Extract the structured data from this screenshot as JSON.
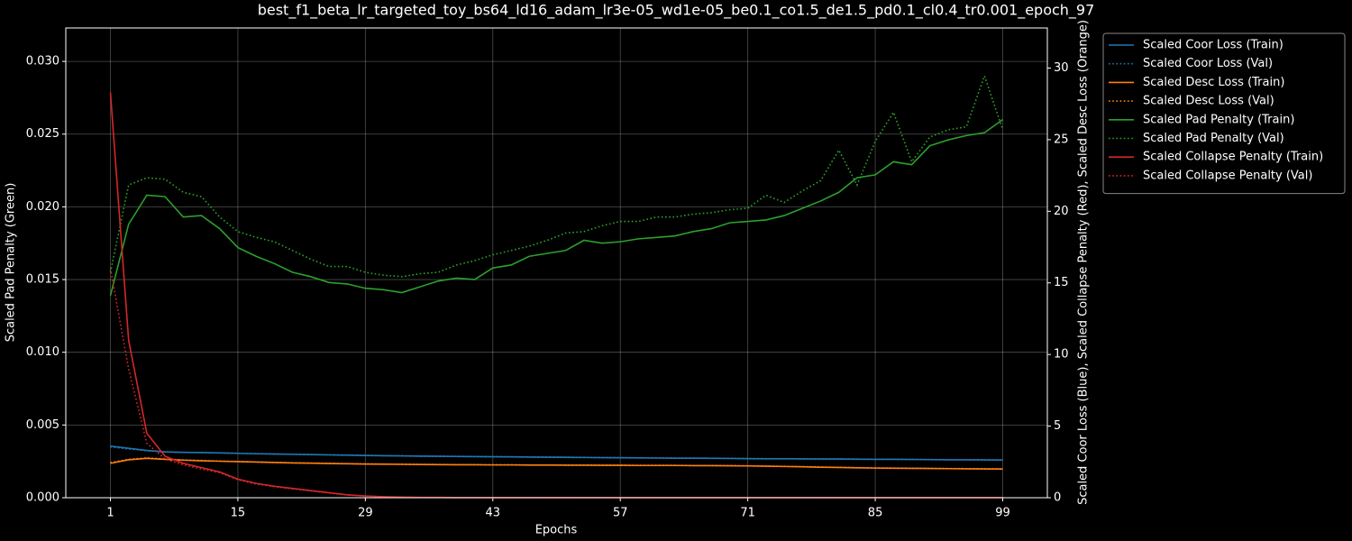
{
  "chart_data": {
    "type": "line",
    "title": "best_f1_beta_lr_targeted_toy_bs64_ld16_adam_lr3e-05_wd1e-05_be0.1_co1.5_de1.5_pd0.1_cl0.4_tr0.001_epoch_97",
    "x_label": "Epochs",
    "y_label": "Scaled Pad Penalty (Green)",
    "y2_label": "Scaled Coor Loss (Blue), Scaled Collapse Penalty (Red), Scaled Desc Loss (Orange)",
    "x": [
      1,
      3,
      5,
      7,
      9,
      11,
      13,
      15,
      17,
      19,
      21,
      23,
      25,
      27,
      29,
      31,
      33,
      35,
      37,
      39,
      41,
      43,
      45,
      47,
      49,
      51,
      53,
      55,
      57,
      59,
      61,
      63,
      65,
      67,
      69,
      71,
      73,
      75,
      77,
      79,
      81,
      83,
      85,
      87,
      89,
      91,
      93,
      95,
      97,
      99
    ],
    "xlim": [
      -3.9,
      103.9
    ],
    "xticks": [
      1,
      15,
      29,
      43,
      57,
      71,
      85,
      99
    ],
    "ylim": [
      0,
      0.0323
    ],
    "yticks": [
      {
        "value": 0,
        "label": "0.000"
      },
      {
        "value": 0.005,
        "label": "0.005"
      },
      {
        "value": 0.01,
        "label": "0.010"
      },
      {
        "value": 0.015,
        "label": "0.015"
      },
      {
        "value": 0.02,
        "label": "0.020"
      },
      {
        "value": 0.025,
        "label": "0.025"
      },
      {
        "value": 0.03,
        "label": "0.030"
      }
    ],
    "y2lim": [
      0,
      32.8
    ],
    "y2ticks": [
      0,
      5,
      10,
      15,
      20,
      25,
      30
    ],
    "grid": true,
    "legend": "outside upper right",
    "series": [
      {
        "name": "Scaled Coor Loss (Train)",
        "color": "#1f77b4",
        "linestyle": "solid",
        "axis": "y2",
        "values": [
          3.6,
          3.45,
          3.3,
          3.2,
          3.17,
          3.15,
          3.13,
          3.1,
          3.07,
          3.05,
          3.03,
          3.01,
          2.99,
          2.97,
          2.95,
          2.93,
          2.92,
          2.9,
          2.89,
          2.88,
          2.87,
          2.86,
          2.85,
          2.84,
          2.83,
          2.82,
          2.81,
          2.8,
          2.79,
          2.78,
          2.77,
          2.76,
          2.76,
          2.75,
          2.74,
          2.73,
          2.72,
          2.72,
          2.71,
          2.7,
          2.7,
          2.69,
          2.68,
          2.68,
          2.67,
          2.66,
          2.65,
          2.65,
          2.64,
          2.63
        ]
      },
      {
        "name": "Scaled Coor Loss (Val)",
        "color": "#1f77b4",
        "linestyle": "dotted",
        "axis": "y2",
        "values": [
          3.55,
          3.4,
          3.28,
          3.2,
          3.17,
          3.15,
          3.13,
          3.1,
          3.08,
          3.06,
          3.04,
          3.02,
          3.0,
          2.98,
          2.96,
          2.94,
          2.93,
          2.91,
          2.9,
          2.89,
          2.88,
          2.87,
          2.86,
          2.85,
          2.84,
          2.83,
          2.82,
          2.81,
          2.8,
          2.79,
          2.78,
          2.77,
          2.77,
          2.76,
          2.75,
          2.74,
          2.73,
          2.73,
          2.72,
          2.71,
          2.71,
          2.7,
          2.69,
          2.69,
          2.68,
          2.67,
          2.66,
          2.66,
          2.65,
          2.64
        ]
      },
      {
        "name": "Scaled Desc Loss (Train)",
        "color": "#ff7f0e",
        "linestyle": "solid",
        "axis": "y2",
        "values": [
          2.4,
          2.65,
          2.75,
          2.68,
          2.62,
          2.58,
          2.55,
          2.52,
          2.49,
          2.46,
          2.43,
          2.41,
          2.39,
          2.37,
          2.35,
          2.34,
          2.33,
          2.32,
          2.31,
          2.3,
          2.3,
          2.29,
          2.29,
          2.28,
          2.28,
          2.27,
          2.27,
          2.26,
          2.26,
          2.25,
          2.25,
          2.25,
          2.24,
          2.24,
          2.23,
          2.22,
          2.2,
          2.18,
          2.16,
          2.13,
          2.11,
          2.09,
          2.07,
          2.06,
          2.05,
          2.04,
          2.03,
          2.02,
          2.01,
          2.0
        ]
      },
      {
        "name": "Scaled Desc Loss (Val)",
        "color": "#ff7f0e",
        "linestyle": "dotted",
        "axis": "y2",
        "values": [
          2.45,
          2.68,
          2.78,
          2.7,
          2.64,
          2.6,
          2.56,
          2.53,
          2.5,
          2.47,
          2.44,
          2.42,
          2.4,
          2.38,
          2.36,
          2.35,
          2.34,
          2.33,
          2.32,
          2.31,
          2.31,
          2.3,
          2.3,
          2.29,
          2.29,
          2.28,
          2.28,
          2.27,
          2.27,
          2.26,
          2.26,
          2.26,
          2.25,
          2.25,
          2.24,
          2.23,
          2.21,
          2.19,
          2.17,
          2.14,
          2.12,
          2.1,
          2.08,
          2.07,
          2.06,
          2.05,
          2.04,
          2.03,
          2.02,
          2.01
        ]
      },
      {
        "name": "Scaled Pad Penalty (Train)",
        "color": "#2ca02c",
        "linestyle": "solid",
        "axis": "y",
        "values": [
          0.0139,
          0.0188,
          0.0208,
          0.0207,
          0.0193,
          0.0194,
          0.0185,
          0.0172,
          0.0166,
          0.0161,
          0.0155,
          0.0152,
          0.0148,
          0.0147,
          0.0144,
          0.0143,
          0.0141,
          0.0145,
          0.0149,
          0.0151,
          0.015,
          0.0158,
          0.016,
          0.0166,
          0.0168,
          0.017,
          0.0177,
          0.0175,
          0.0176,
          0.0178,
          0.0179,
          0.018,
          0.0183,
          0.0185,
          0.0189,
          0.019,
          0.0191,
          0.0194,
          0.0199,
          0.0204,
          0.021,
          0.022,
          0.0222,
          0.0231,
          0.0229,
          0.0242,
          0.0246,
          0.0249,
          0.0251,
          0.026
        ]
      },
      {
        "name": "Scaled Pad Penalty (Val)",
        "color": "#2ca02c",
        "linestyle": "dotted",
        "axis": "y",
        "values": [
          0.0155,
          0.0215,
          0.022,
          0.0219,
          0.021,
          0.0207,
          0.0193,
          0.0183,
          0.0179,
          0.0176,
          0.017,
          0.0164,
          0.0159,
          0.0159,
          0.0155,
          0.0153,
          0.0152,
          0.0154,
          0.0155,
          0.016,
          0.0163,
          0.0167,
          0.017,
          0.0173,
          0.0177,
          0.0182,
          0.0183,
          0.0187,
          0.019,
          0.019,
          0.0193,
          0.0193,
          0.0195,
          0.0196,
          0.0198,
          0.0199,
          0.0208,
          0.0203,
          0.0211,
          0.0218,
          0.0239,
          0.0215,
          0.0245,
          0.0265,
          0.0231,
          0.0248,
          0.0253,
          0.0255,
          0.029,
          0.0253
        ]
      },
      {
        "name": "Scaled Collapse Penalty (Train)",
        "color": "#d62728",
        "linestyle": "solid",
        "axis": "y2",
        "values": [
          28.3,
          11,
          4.5,
          2.9,
          2.4,
          2.1,
          1.8,
          1.3,
          1.0,
          0.8,
          0.65,
          0.5,
          0.35,
          0.2,
          0.12,
          0.07,
          0.04,
          0.02,
          0.02,
          0.01,
          0.01,
          0.01,
          0.01,
          0.01,
          0.01,
          0.01,
          0.01,
          0.01,
          0.01,
          0.01,
          0.01,
          0.01,
          0.01,
          0.01,
          0.01,
          0.01,
          0.01,
          0.01,
          0.01,
          0.01,
          0.01,
          0.01,
          0.01,
          0.01,
          0.01,
          0.01,
          0.01,
          0.01,
          0.01,
          0.01
        ]
      },
      {
        "name": "Scaled Collapse Penalty (Val)",
        "color": "#d62728",
        "linestyle": "dotted",
        "axis": "y2",
        "values": [
          16,
          9,
          3.8,
          2.7,
          2.3,
          2.0,
          1.75,
          1.25,
          0.95,
          0.78,
          0.62,
          0.48,
          0.33,
          0.19,
          0.11,
          0.06,
          0.04,
          0.02,
          0.02,
          0.01,
          0.01,
          0.01,
          0.01,
          0.01,
          0.01,
          0.01,
          0.01,
          0.01,
          0.01,
          0.01,
          0.01,
          0.01,
          0.01,
          0.01,
          0.01,
          0.01,
          0.01,
          0.01,
          0.01,
          0.01,
          0.01,
          0.01,
          0.01,
          0.01,
          0.01,
          0.01,
          0.01,
          0.01,
          0.01,
          0.01
        ]
      }
    ]
  }
}
